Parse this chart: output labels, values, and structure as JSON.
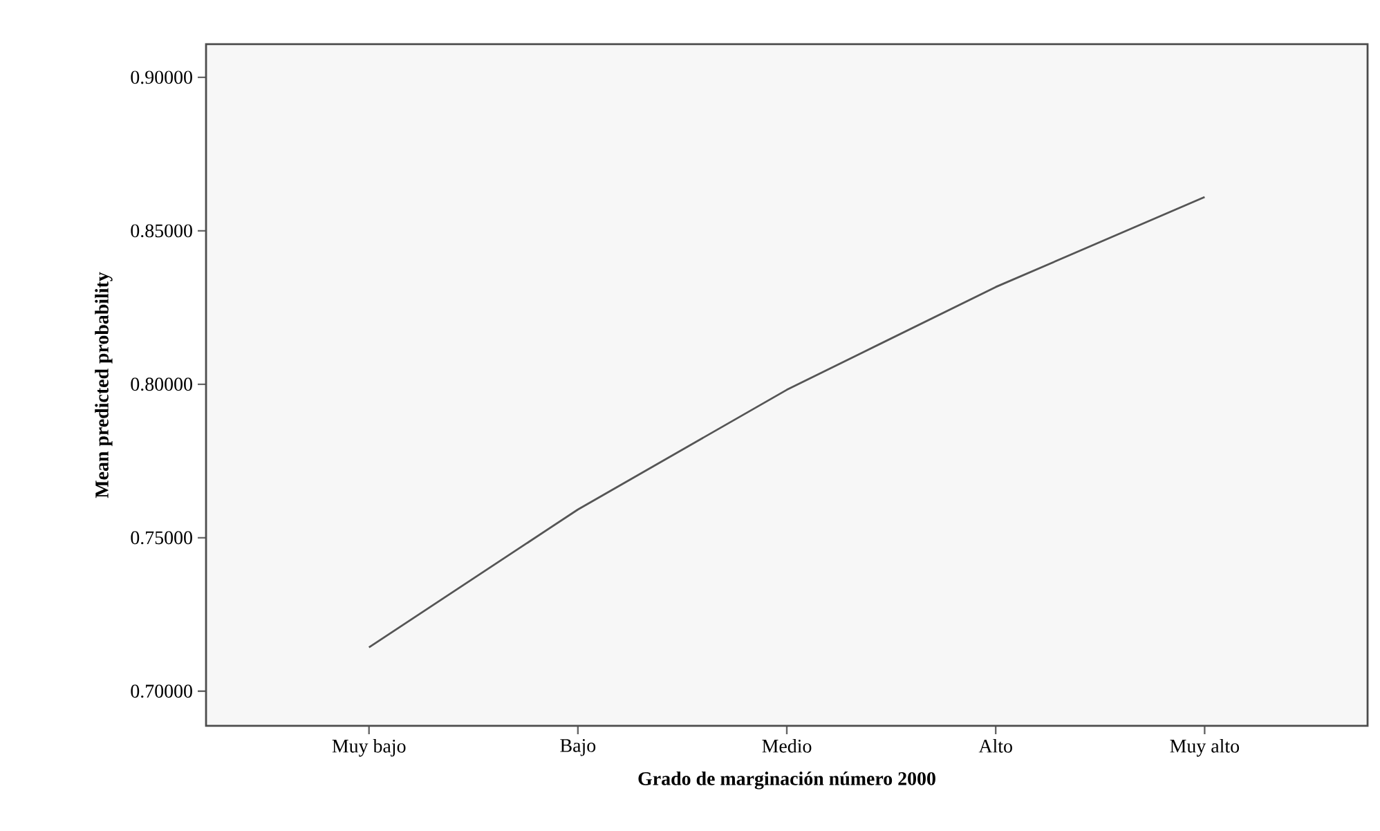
{
  "chart_data": {
    "type": "line",
    "xlabel": "Grado de marginación número 2000",
    "ylabel": "Mean predicted probability",
    "categories": [
      "Muy bajo",
      "Bajo",
      "Medio",
      "Alto",
      "Muy alto"
    ],
    "series": [
      {
        "color": "#555555",
        "values": [
          0.7143,
          0.7592,
          0.7982,
          0.8317,
          0.861
        ]
      }
    ],
    "ylim": [
      0.6887,
      0.9108
    ],
    "yticks": [
      {
        "value": 0.7,
        "label": "0.70000"
      },
      {
        "value": 0.75,
        "label": "0.75000"
      },
      {
        "value": 0.8,
        "label": "0.80000"
      },
      {
        "value": 0.85,
        "label": "0.85000"
      },
      {
        "value": 0.9,
        "label": "0.90000"
      }
    ],
    "grid": false,
    "marker": "none",
    "line_style": "solid"
  }
}
